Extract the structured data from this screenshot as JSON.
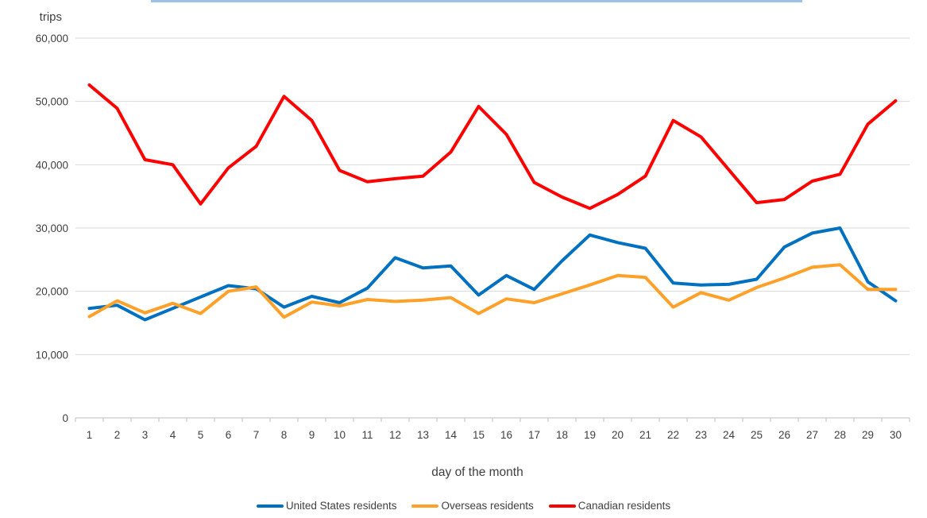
{
  "page": {
    "top_border_color": "#9CC3E6"
  },
  "chart_data": {
    "type": "line",
    "title": "",
    "y_axis_label": "trips",
    "x_axis_label": "day of the month",
    "categories": [
      1,
      2,
      3,
      4,
      5,
      6,
      7,
      8,
      9,
      10,
      11,
      12,
      13,
      14,
      15,
      16,
      17,
      18,
      19,
      20,
      21,
      22,
      23,
      24,
      25,
      26,
      27,
      28,
      29,
      30
    ],
    "y_ticks": [
      "0",
      "10,000",
      "20,000",
      "30,000",
      "40,000",
      "50,000",
      "60,000"
    ],
    "ylim": [
      0,
      60000
    ],
    "y_tick_interval": 10000,
    "grid": true,
    "legend_position": "bottom",
    "colors": {
      "gridline": "#D9D9D9",
      "axis_line": "#BFBFBF",
      "text": "#404040"
    },
    "series": [
      {
        "name": "United States residents",
        "color": "#0070C0",
        "values": [
          17300,
          17800,
          15500,
          17300,
          19100,
          20900,
          20400,
          17500,
          19200,
          18200,
          20500,
          25300,
          23700,
          24000,
          19400,
          22500,
          20300,
          24800,
          28900,
          27700,
          26800,
          21300,
          21000,
          21100,
          21900,
          27000,
          29200,
          30000,
          21500,
          18500
        ]
      },
      {
        "name": "Overseas residents",
        "color": "#FFA028",
        "values": [
          16000,
          18500,
          16600,
          18100,
          16500,
          20000,
          20700,
          15900,
          18300,
          17700,
          18700,
          18400,
          18600,
          19000,
          16500,
          18800,
          18200,
          19600,
          21000,
          22500,
          22200,
          17500,
          19800,
          18600,
          20600,
          22100,
          23800,
          24200,
          20300,
          20300
        ]
      },
      {
        "name": "Canadian residents",
        "color": "#FF0000",
        "values": [
          52600,
          48900,
          40800,
          40000,
          33800,
          39500,
          42900,
          50800,
          47000,
          39100,
          37300,
          37800,
          38200,
          42000,
          49200,
          44800,
          37200,
          34900,
          33100,
          35300,
          38200,
          47000,
          44400,
          39200,
          34000,
          34500,
          37400,
          38500,
          46400,
          50100
        ]
      }
    ]
  }
}
